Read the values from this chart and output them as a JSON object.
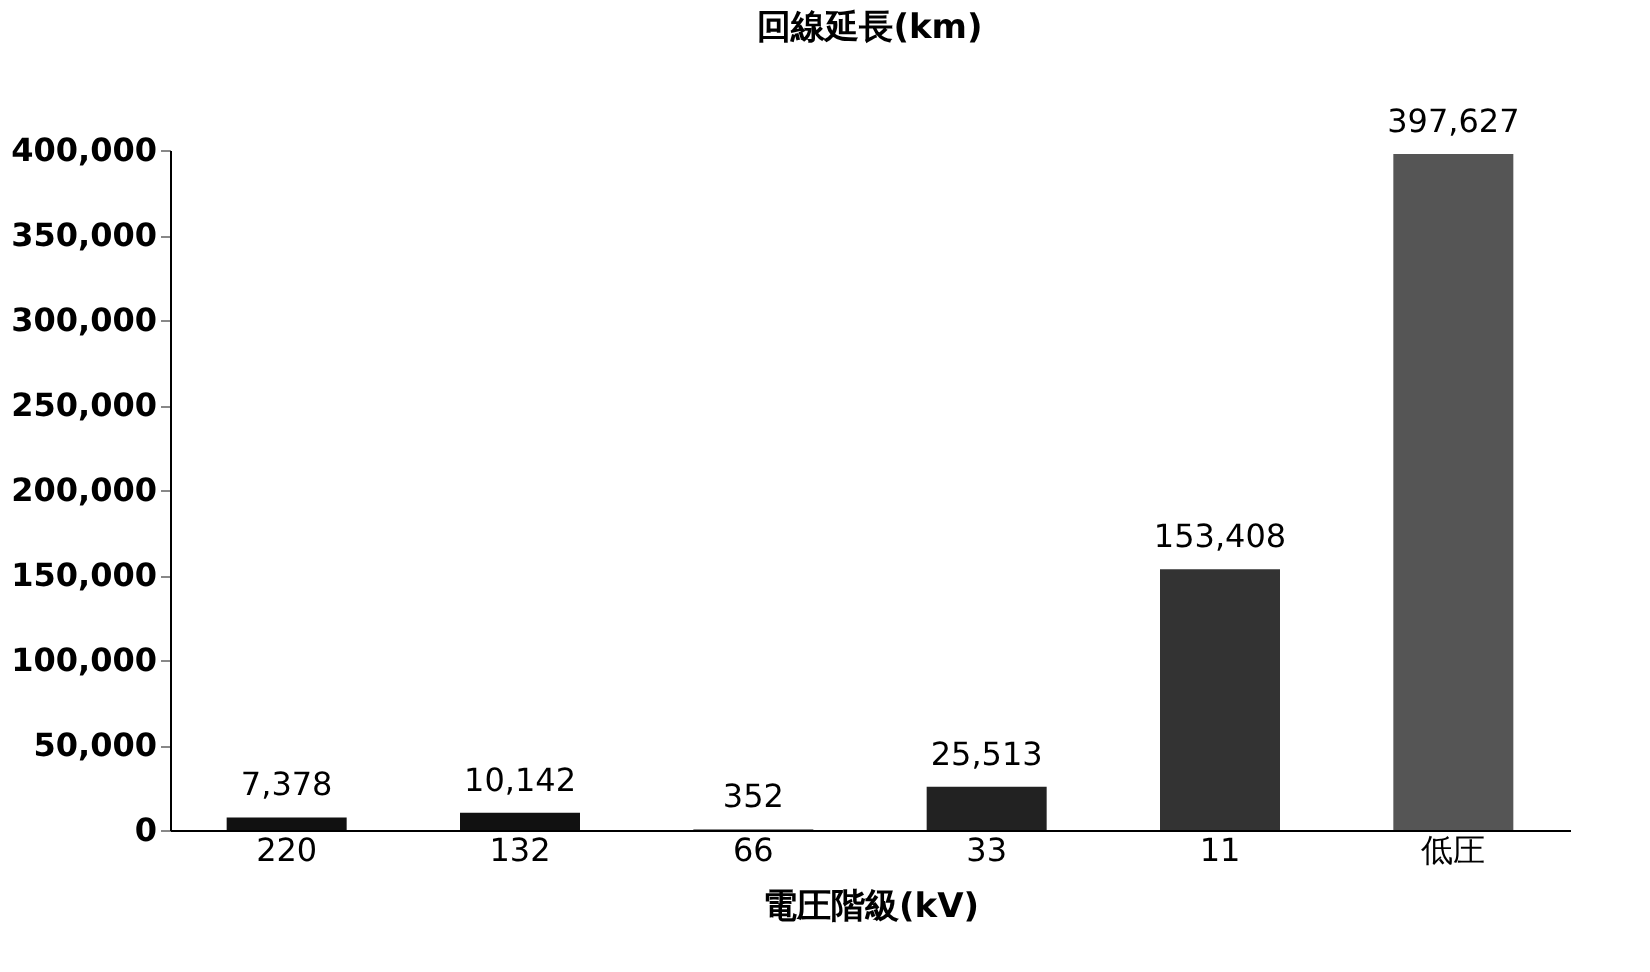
{
  "chart_data": {
    "type": "bar",
    "title": "回線延長(km)",
    "xlabel": "電圧階級(kV)",
    "categories": [
      "220",
      "132",
      "66",
      "33",
      "11",
      "低圧"
    ],
    "values": [
      7378,
      10142,
      352,
      25513,
      153408,
      397627
    ],
    "colors": [
      "#111111",
      "#111111",
      "#111111",
      "#222222",
      "#333333",
      "#555555"
    ],
    "ylim": [
      0,
      400000
    ],
    "yticks": [
      {
        "value": 0,
        "label": "0"
      },
      {
        "value": 50000,
        "label": "50,000"
      },
      {
        "value": 100000,
        "label": "100,000"
      },
      {
        "value": 150000,
        "label": "150,000"
      },
      {
        "value": 200000,
        "label": "200,000"
      },
      {
        "value": 250000,
        "label": "250,000"
      },
      {
        "value": 300000,
        "label": "300,000"
      },
      {
        "value": 350000,
        "label": "350,000"
      },
      {
        "value": 400000,
        "label": "400,000"
      }
    ],
    "value_labels": [
      "7,378",
      "10,142",
      "352",
      "25,513",
      "153,408",
      "397,627"
    ],
    "grid": false,
    "legend": false
  }
}
